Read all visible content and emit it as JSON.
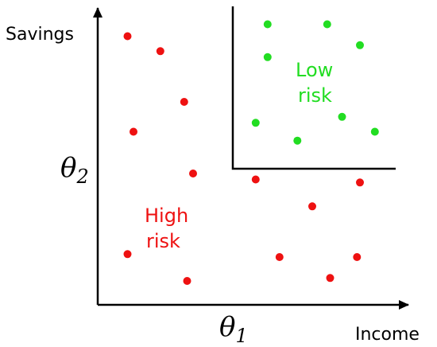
{
  "axes": {
    "x_label": "Income",
    "y_label": "Savings",
    "x_symbol": "θ",
    "x_symbol_sub": "1",
    "y_symbol": "θ",
    "y_symbol_sub": "2"
  },
  "regions": {
    "high_risk": {
      "line1": "High",
      "line2": "risk",
      "color": "#ee1111"
    },
    "low_risk": {
      "line1": "Low",
      "line2": "risk",
      "color": "#22dd22"
    }
  },
  "points": {
    "low_risk": [
      {
        "income": 0.57,
        "savings": 0.94
      },
      {
        "income": 0.77,
        "savings": 0.94
      },
      {
        "income": 0.88,
        "savings": 0.87
      },
      {
        "income": 0.57,
        "savings": 0.83
      },
      {
        "income": 0.53,
        "savings": 0.61
      },
      {
        "income": 0.67,
        "savings": 0.55
      },
      {
        "income": 0.82,
        "savings": 0.63
      },
      {
        "income": 0.93,
        "savings": 0.58
      }
    ],
    "high_risk": [
      {
        "income": 0.1,
        "savings": 0.9
      },
      {
        "income": 0.21,
        "savings": 0.85
      },
      {
        "income": 0.29,
        "savings": 0.68
      },
      {
        "income": 0.12,
        "savings": 0.58
      },
      {
        "income": 0.32,
        "savings": 0.44
      },
      {
        "income": 0.53,
        "savings": 0.42
      },
      {
        "income": 0.88,
        "savings": 0.41
      },
      {
        "income": 0.72,
        "savings": 0.33
      },
      {
        "income": 0.1,
        "savings": 0.17
      },
      {
        "income": 0.3,
        "savings": 0.08
      },
      {
        "income": 0.61,
        "savings": 0.16
      },
      {
        "income": 0.78,
        "savings": 0.09
      },
      {
        "income": 0.87,
        "savings": 0.16
      }
    ]
  },
  "thresholds": {
    "theta1": 0.44,
    "theta2": 0.5
  }
}
